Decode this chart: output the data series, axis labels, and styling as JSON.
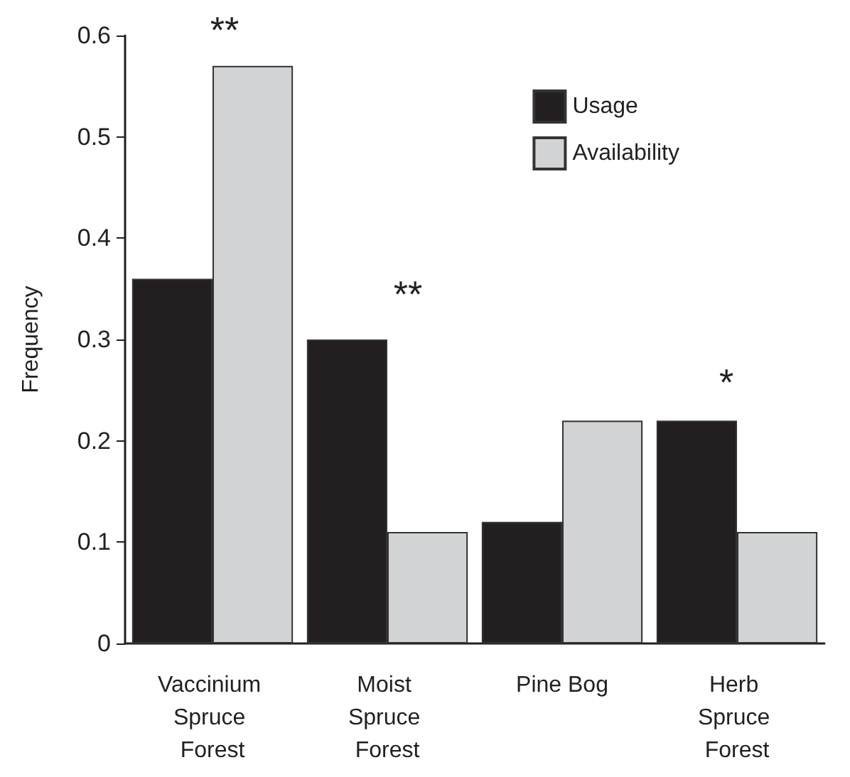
{
  "chart_data": {
    "type": "bar",
    "ylabel": "Frequency",
    "categories": [
      "Vaccinium Spruce Forest",
      "Moist Spruce Forest",
      "Pine Bog",
      "Herb Spruce Forest"
    ],
    "series": [
      {
        "name": "Usage",
        "color": "#231f20",
        "values": [
          0.36,
          0.3,
          0.12,
          0.22
        ]
      },
      {
        "name": "Availability",
        "color": "#d1d3d4",
        "values": [
          0.57,
          0.11,
          0.22,
          0.11
        ]
      }
    ],
    "ylim": [
      0,
      0.6
    ],
    "yticks": [
      0,
      0.1,
      0.2,
      0.3,
      0.4,
      0.5,
      0.6
    ],
    "grid": false,
    "legend": "top right",
    "annotations": [
      "**",
      "**",
      "*"
    ]
  }
}
